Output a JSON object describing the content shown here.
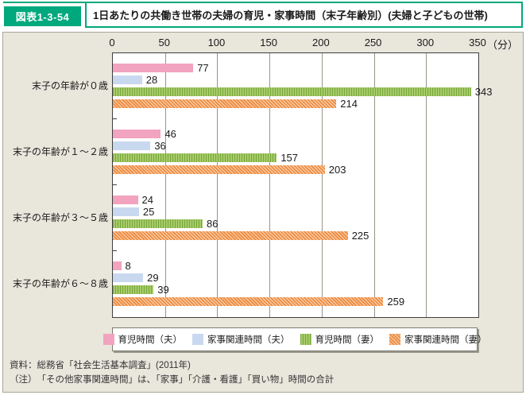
{
  "header": {
    "badge": "図表1-3-54",
    "title": "1日あたりの共働き世帯の夫婦の育児・家事時間（末子年齢別）(夫婦と子どもの世帯)"
  },
  "chart_data": {
    "type": "bar",
    "orientation": "horizontal",
    "title": "1日あたりの共働き世帯の夫婦の育児・家事時間（末子年齢別）(夫婦と子どもの世帯)",
    "unit_label": "（分）",
    "axis_ticks": [
      0,
      50,
      100,
      150,
      200,
      250,
      300,
      350
    ],
    "xlim": [
      0,
      350
    ],
    "grid": true,
    "legend_position": "bottom",
    "categories": [
      "末子の年齢が０歳",
      "末子の年齢が１～２歳",
      "末子の年齢が３～５歳",
      "末子の年齢が６～８歳"
    ],
    "series": [
      {
        "name": "育児時間（夫）",
        "color": "#f2a3bf",
        "stripe_color": "#f2a3bf",
        "pattern": "solid",
        "values": [
          77,
          46,
          24,
          8
        ]
      },
      {
        "name": "家事関連時間（夫）",
        "color": "#c8d8ef",
        "stripe_color": "#c8d8ef",
        "pattern": "solid",
        "values": [
          28,
          36,
          25,
          29
        ]
      },
      {
        "name": "育児時間（妻）",
        "color": "#a6cb69",
        "stripe_color": "#79a83c",
        "pattern": "vertical-stripes",
        "values": [
          343,
          157,
          86,
          39
        ]
      },
      {
        "name": "家事関連時間（妻）",
        "color": "#ee8f45",
        "stripe_color": "#fbd9bd",
        "pattern": "diagonal-hatch",
        "values": [
          214,
          203,
          225,
          259
        ]
      }
    ]
  },
  "footer": {
    "source": "資料：総務省「社会生活基本調査」(2011年)",
    "note": "（注）　「その他家事関連時間」は、「家事」「介護・看護」「買い物」時間の合計"
  },
  "colors": {
    "accent_green": "#00a87d",
    "panel_bg": "#e9e6dc",
    "grid": "#999489",
    "plot_border": "#3f3f3f"
  }
}
